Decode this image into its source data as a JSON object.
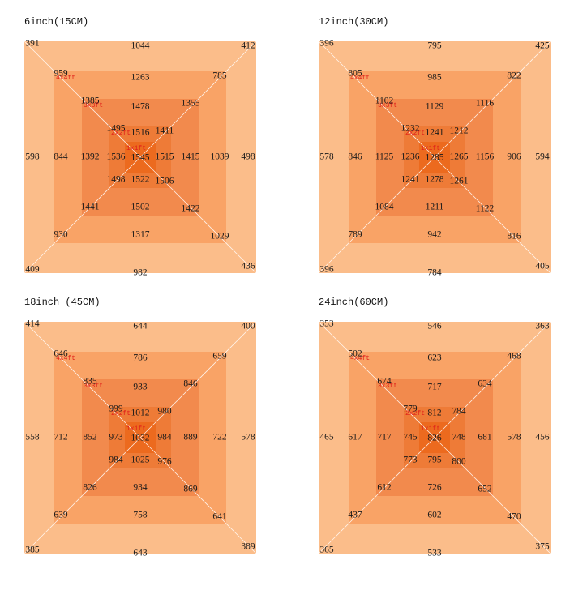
{
  "colors": {
    "ring_outer": "#fbbd8a",
    "ring_3": "#f9a366",
    "ring_2": "#f28a4d",
    "ring_1": "#ee7b37",
    "center": "#ec6a1e",
    "zone_label": "#e0201a"
  },
  "zones": [
    "4x4ft",
    "3x3ft",
    "2x2ft",
    "1x1ft"
  ],
  "panels": [
    {
      "title": "6inch(15CM)",
      "values": {
        "outer": {
          "tl": "391",
          "t": "1044",
          "tr": "412",
          "l": "598",
          "r": "498",
          "bl": "409",
          "b": "982",
          "br": "436"
        },
        "r4": {
          "tl": "959",
          "t": "1263",
          "tr": "785",
          "l": "844",
          "r": "1039",
          "bl": "930",
          "b": "1317",
          "br": "1029"
        },
        "r3": {
          "tl": "1385",
          "t": "1478",
          "tr": "1355",
          "l": "1392",
          "r": "1415",
          "bl": "1441",
          "b": "1502",
          "br": "1422"
        },
        "r2": {
          "tl": "1495",
          "t": "1516",
          "tr": "1411",
          "l": "1536",
          "r": "1515",
          "bl": "1498",
          "b": "1522",
          "br": "1506"
        },
        "c": "1545"
      }
    },
    {
      "title": "12inch(30CM)",
      "values": {
        "outer": {
          "tl": "396",
          "t": "795",
          "tr": "425",
          "l": "578",
          "r": "594",
          "bl": "396",
          "b": "784",
          "br": "405"
        },
        "r4": {
          "tl": "805",
          "t": "985",
          "tr": "822",
          "l": "846",
          "r": "906",
          "bl": "789",
          "b": "942",
          "br": "816"
        },
        "r3": {
          "tl": "1102",
          "t": "1129",
          "tr": "1116",
          "l": "1125",
          "r": "1156",
          "bl": "1084",
          "b": "1211",
          "br": "1122"
        },
        "r2": {
          "tl": "1232",
          "t": "1241",
          "tr": "1212",
          "l": "1236",
          "r": "1265",
          "bl": "1241",
          "b": "1278",
          "br": "1261"
        },
        "c": "1285"
      }
    },
    {
      "title": "18inch (45CM)",
      "values": {
        "outer": {
          "tl": "414",
          "t": "644",
          "tr": "400",
          "l": "558",
          "r": "578",
          "bl": "385",
          "b": "643",
          "br": "389"
        },
        "r4": {
          "tl": "646",
          "t": "786",
          "tr": "659",
          "l": "712",
          "r": "722",
          "bl": "639",
          "b": "758",
          "br": "641"
        },
        "r3": {
          "tl": "835",
          "t": "933",
          "tr": "846",
          "l": "852",
          "r": "889",
          "bl": "826",
          "b": "934",
          "br": "869"
        },
        "r2": {
          "tl": "999",
          "t": "1012",
          "tr": "980",
          "l": "973",
          "r": "984",
          "bl": "984",
          "b": "1025",
          "br": "976"
        },
        "c": "1032"
      }
    },
    {
      "title": "24inch(60CM)",
      "values": {
        "outer": {
          "tl": "353",
          "t": "546",
          "tr": "363",
          "l": "465",
          "r": "456",
          "bl": "365",
          "b": "533",
          "br": "375"
        },
        "r4": {
          "tl": "502",
          "t": "623",
          "tr": "468",
          "l": "617",
          "r": "578",
          "bl": "437",
          "b": "602",
          "br": "470"
        },
        "r3": {
          "tl": "674",
          "t": "717",
          "tr": "634",
          "l": "717",
          "r": "681",
          "bl": "612",
          "b": "726",
          "br": "652"
        },
        "r2": {
          "tl": "779",
          "t": "812",
          "tr": "784",
          "l": "745",
          "r": "748",
          "bl": "773",
          "b": "795",
          "br": "800"
        },
        "c": "826"
      }
    }
  ]
}
